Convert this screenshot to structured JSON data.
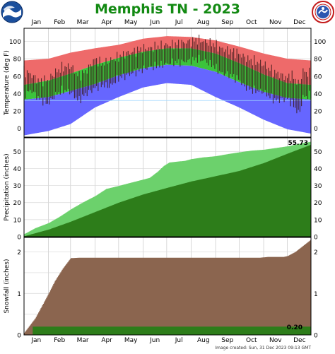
{
  "title": "Memphis TN - 2023",
  "footer_text": "Image created:  Sun, 31 Dec 2023 09:13 GMT",
  "logos": {
    "left": "noaa-logo",
    "right": "nws-logo"
  },
  "colors": {
    "title": "#138a13",
    "record_high": "#ee6a6a",
    "normal_band": "#3cc33c",
    "record_low": "#6666ff",
    "precip_normal": "#6cd16c",
    "precip_actual": "#2d7d1a",
    "snow_normal": "#2d7d1a",
    "snow_actual": "#8b654f"
  },
  "chart_data": [
    {
      "type": "area",
      "panel": "temperature",
      "ylabel": "Temperature (deg F)",
      "ylim": [
        -10,
        115
      ],
      "yticks": [
        0,
        20,
        40,
        60,
        80,
        100
      ],
      "x_month_labels": [
        "Jan",
        "Feb",
        "Mar",
        "Apr",
        "May",
        "Jun",
        "Jul",
        "Aug",
        "Sep",
        "Oct",
        "Nov",
        "Dec"
      ],
      "x_day_of_month_starts": [
        1,
        32,
        60,
        91,
        121,
        152,
        182,
        213,
        244,
        274,
        305,
        335
      ],
      "days": 365,
      "series": [
        {
          "name": "record_high",
          "x": [
            1,
            32,
            60,
            91,
            121,
            152,
            182,
            213,
            244,
            274,
            305,
            335,
            365
          ],
          "values": [
            78,
            80,
            87,
            92,
            96,
            103,
            106,
            105,
            101,
            94,
            86,
            80,
            78
          ]
        },
        {
          "name": "normal_high",
          "x": [
            1,
            32,
            60,
            91,
            121,
            152,
            182,
            213,
            244,
            274,
            305,
            335,
            365
          ],
          "values": [
            50,
            55,
            63,
            73,
            81,
            88,
            92,
            92,
            86,
            75,
            62,
            52,
            50
          ]
        },
        {
          "name": "normal_low",
          "x": [
            1,
            32,
            60,
            91,
            121,
            152,
            182,
            213,
            244,
            274,
            305,
            335,
            365
          ],
          "values": [
            33,
            36,
            43,
            51,
            61,
            69,
            73,
            72,
            65,
            53,
            42,
            35,
            33
          ]
        },
        {
          "name": "record_low",
          "x": [
            1,
            32,
            60,
            91,
            121,
            152,
            182,
            213,
            244,
            274,
            305,
            335,
            365
          ],
          "values": [
            -8,
            -3,
            5,
            24,
            36,
            47,
            52,
            50,
            36,
            24,
            10,
            -1,
            -6
          ]
        }
      ],
      "daily_actual_2023": {
        "x": [
          1,
          10,
          20,
          32,
          40,
          50,
          60,
          70,
          80,
          91,
          100,
          110,
          121,
          130,
          140,
          152,
          160,
          170,
          182,
          190,
          200,
          213,
          220,
          230,
          244,
          250,
          260,
          274,
          280,
          290,
          305,
          310,
          320,
          335,
          340,
          350,
          355,
          365
        ],
        "high": [
          66,
          62,
          54,
          56,
          64,
          70,
          72,
          60,
          66,
          80,
          74,
          78,
          82,
          86,
          88,
          92,
          92,
          94,
          96,
          96,
          98,
          100,
          102,
          100,
          96,
          92,
          90,
          86,
          82,
          78,
          74,
          70,
          64,
          58,
          62,
          50,
          66,
          62
        ],
        "low": [
          38,
          44,
          34,
          28,
          38,
          44,
          42,
          32,
          40,
          46,
          50,
          48,
          58,
          60,
          64,
          68,
          70,
          72,
          74,
          76,
          76,
          78,
          80,
          78,
          70,
          64,
          62,
          56,
          48,
          44,
          42,
          38,
          32,
          34,
          30,
          16,
          36,
          38
        ]
      }
    },
    {
      "type": "area",
      "panel": "precipitation",
      "ylabel": "Precipitation (inches)",
      "ylim": [
        0,
        58
      ],
      "yticks": [
        0,
        10,
        20,
        30,
        40,
        50
      ],
      "annotation": "55.73",
      "series": [
        {
          "name": "normal",
          "x": [
            1,
            32,
            60,
            91,
            121,
            152,
            182,
            213,
            244,
            274,
            305,
            335,
            365
          ],
          "values": [
            0.3,
            4.2,
            8.8,
            14.5,
            20.0,
            24.8,
            28.6,
            32.4,
            35.5,
            38.6,
            43.2,
            48.7,
            54.0
          ]
        },
        {
          "name": "actual",
          "x": [
            1,
            15,
            32,
            47,
            60,
            75,
            91,
            105,
            121,
            135,
            152,
            160,
            170,
            178,
            185,
            195,
            205,
            213,
            228,
            244,
            260,
            274,
            290,
            305,
            320,
            335,
            350,
            365
          ],
          "values": [
            1.5,
            5.0,
            8.0,
            12.0,
            16.0,
            20.0,
            23.8,
            28.0,
            29.8,
            31.5,
            33.5,
            34.5,
            38.0,
            41.5,
            43.5,
            44.0,
            44.5,
            45.5,
            46.5,
            47.2,
            48.5,
            49.5,
            50.5,
            51.0,
            52.0,
            53.0,
            54.5,
            55.73
          ]
        }
      ]
    },
    {
      "type": "area",
      "panel": "snowfall",
      "ylabel": "Snowfall (inches)",
      "ylim": [
        0,
        2.35
      ],
      "yticks": [
        0,
        0.5,
        1,
        1.5,
        2
      ],
      "ytick_labels": [
        "0",
        "",
        "1",
        "",
        "2"
      ],
      "annotation": "0.20",
      "series": [
        {
          "name": "normal",
          "x": [
            1,
            15,
            25,
            32,
            40,
            50,
            60,
            70,
            80,
            300,
            310,
            330,
            335,
            345,
            355,
            365
          ],
          "values": [
            0.05,
            0.4,
            0.75,
            1.0,
            1.3,
            1.6,
            1.85,
            1.86,
            1.86,
            1.86,
            1.88,
            1.88,
            1.9,
            2.0,
            2.15,
            2.3
          ]
        },
        {
          "name": "actual",
          "x": [
            1,
            365
          ],
          "values": [
            0.2,
            0.2
          ]
        }
      ]
    }
  ]
}
